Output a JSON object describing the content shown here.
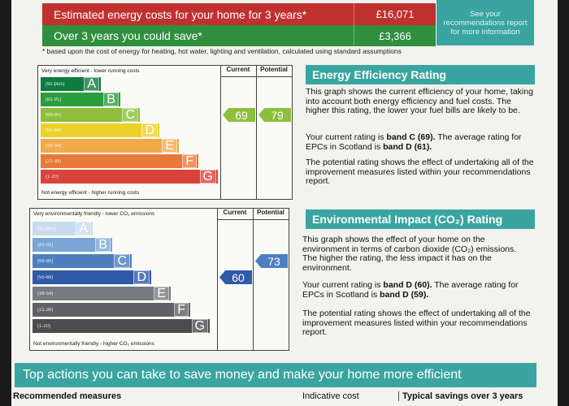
{
  "costs": {
    "estimated_label": "Estimated energy costs for your home for 3 years*",
    "estimated_value": "£16,071",
    "save_label": "Over 3 years you could save*",
    "save_value": "£3,366",
    "see_text": "See your recommendations report for more information",
    "footnote": "* based upon the cost of energy for heating, hot water, lighting and ventilation, calculated using standard assumptions"
  },
  "energy_chart": {
    "top_label": "Very energy efficient - lower running costs",
    "bottom_label": "Not energy efficient - higher running costs",
    "current_header": "Current",
    "potential_header": "Potential",
    "current_value": "69",
    "potential_value": "79",
    "bands": [
      {
        "range": "(92 plus)",
        "letter": "A",
        "color": "#0f7c3f"
      },
      {
        "range": "(81-91)",
        "letter": "B",
        "color": "#2a9d3e"
      },
      {
        "range": "(69-80)",
        "letter": "C",
        "color": "#8dbf3a"
      },
      {
        "range": "(55-68)",
        "letter": "D",
        "color": "#ecd12a"
      },
      {
        "range": "(39-54)",
        "letter": "E",
        "color": "#f2aa4a"
      },
      {
        "range": "(21-38)",
        "letter": "F",
        "color": "#e9793a"
      },
      {
        "range": "(1-20)",
        "letter": "G",
        "color": "#d9433a"
      }
    ]
  },
  "env_chart": {
    "top_label": "Very environmentally friendly - lower CO₂ emissions",
    "bottom_label": "Not environmentally friendly - higher CO₂ emissions",
    "current_header": "Current",
    "potential_header": "Potential",
    "current_value": "60",
    "potential_value": "73",
    "bands": [
      {
        "range": "(92 plus)",
        "letter": "A",
        "color": "#c9dcef"
      },
      {
        "range": "(81-91)",
        "letter": "B",
        "color": "#7aa5d6"
      },
      {
        "range": "(69-80)",
        "letter": "C",
        "color": "#4d7fc0"
      },
      {
        "range": "(55-68)",
        "letter": "D",
        "color": "#2e5aa8"
      },
      {
        "range": "(39-54)",
        "letter": "E",
        "color": "#777a80"
      },
      {
        "range": "(21-38)",
        "letter": "F",
        "color": "#5f6166"
      },
      {
        "range": "(1-20)",
        "letter": "G",
        "color": "#4a4c50"
      }
    ]
  },
  "energy_panel": {
    "title": "Energy Efficiency Rating",
    "p1": "This graph shows the current efficiency of your home, taking into account both energy efficiency and fuel costs. The higher this rating, the lower your fuel bills are likely to be.",
    "p2a": "Your current rating is ",
    "p2b": "band C (69).",
    "p2c": " The average rating for EPCs in Scotland is ",
    "p2d": "band D (61).",
    "p3": "The potential rating shows the effect of undertaking all of the improvement measures listed within your recommendations report."
  },
  "env_panel": {
    "title": "Environmental Impact (CO₂) Rating",
    "p1": "This graph shows the effect of your home on the environment in terms of carbon dioxide (CO₂) emissions. The higher the rating, the less impact it has on the environment.",
    "p2a": "Your current rating is ",
    "p2b": "band D (60).",
    "p2c": " The average rating for EPCs in Scotland is ",
    "p2d": "band D (59).",
    "p3": "The potential rating shows the effect of undertaking all of the improvement measures listed within your recommendations report."
  },
  "actions": {
    "banner": "Top actions you can take to save money and make your home more efficient",
    "col1": "Recommended measures",
    "col2": "Indicative cost",
    "col3": "Typical savings over 3 years"
  }
}
